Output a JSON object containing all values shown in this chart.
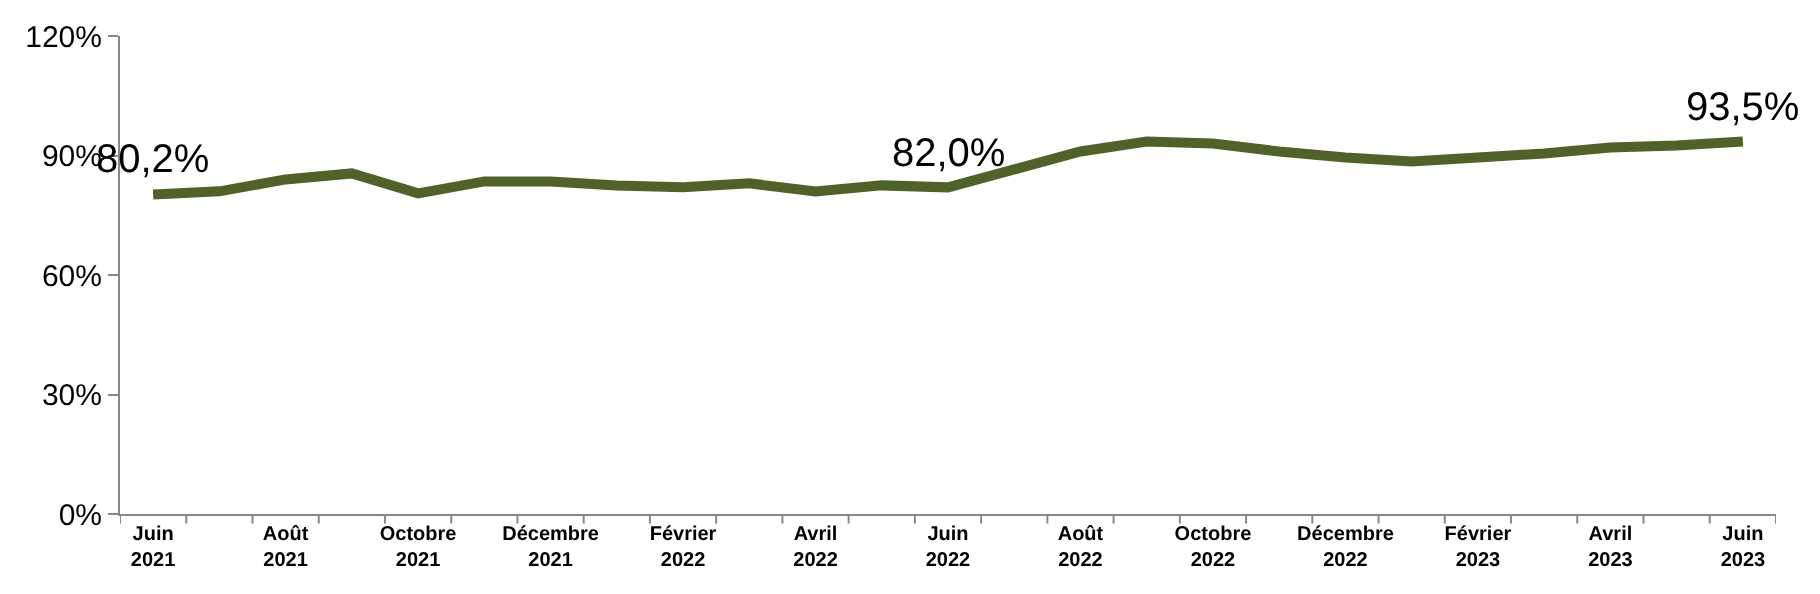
{
  "chart_data": {
    "type": "line",
    "categories": [
      "Juin 2021",
      null,
      "Août 2021",
      null,
      "Octobre 2021",
      null,
      "Décembre 2021",
      null,
      "Février 2022",
      null,
      "Avril 2022",
      null,
      "Juin 2022",
      null,
      "Août 2022",
      null,
      "Octobre 2022",
      null,
      "Décembre 2022",
      null,
      "Février 2023",
      null,
      "Avril 2023",
      null,
      "Juin 2023"
    ],
    "series": [
      {
        "color": "#4f6228",
        "values": [
          80.2,
          81,
          84,
          85.5,
          80.5,
          83.5,
          83.5,
          82.5,
          82,
          83,
          81,
          82.5,
          82.0,
          86.5,
          91,
          93.5,
          93,
          91,
          89.5,
          88.5,
          89.5,
          90.5,
          92,
          92.5,
          93.5
        ]
      }
    ],
    "ylim": [
      0,
      120
    ],
    "yticks": [
      {
        "value": 0,
        "label": "0%"
      },
      {
        "value": 30,
        "label": "30%"
      },
      {
        "value": 60,
        "label": "60%"
      },
      {
        "value": 90,
        "label": "90%"
      },
      {
        "value": 120,
        "label": "120%"
      }
    ],
    "annotations": [
      {
        "text": "80,2%",
        "x": "Juin 2021",
        "y": 80.2
      },
      {
        "text": "82,0%",
        "x": "Juin 2022",
        "y": 82.0
      },
      {
        "text": "93,5%",
        "x": "Juin 2023",
        "y": 93.5
      }
    ],
    "grid": false,
    "legend": false,
    "marker": "none",
    "line_style": "solid"
  }
}
